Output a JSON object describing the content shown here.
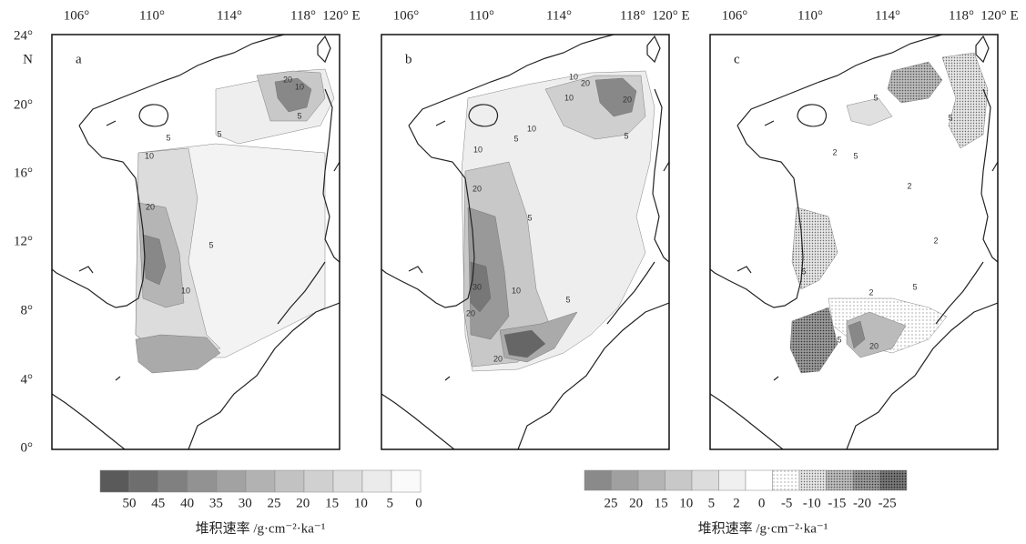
{
  "lat_labels": [
    "24°",
    "N",
    "20°",
    "16°",
    "12°",
    "8°",
    "4°",
    "0°"
  ],
  "panels": [
    {
      "label": "a",
      "lon_labels": [
        "106°",
        "110°",
        "114°",
        "118°",
        "120° E"
      ],
      "contour_labels": [
        "20",
        "10",
        "5",
        "5",
        "5",
        "10",
        "20",
        "5",
        "10"
      ]
    },
    {
      "label": "b",
      "lon_labels": [
        "106°",
        "110°",
        "114°",
        "118°",
        "120° E"
      ],
      "contour_labels": [
        "10",
        "20",
        "10",
        "20",
        "5",
        "5",
        "10",
        "10",
        "20",
        "5",
        "30",
        "10",
        "5",
        "20",
        "20"
      ]
    },
    {
      "label": "c",
      "lon_labels": [
        "106°",
        "110°",
        "114°",
        "118°",
        "120° E"
      ],
      "contour_labels": [
        "5",
        "5",
        "2",
        "5",
        "2",
        "2",
        "2",
        "5",
        "20",
        "5",
        "5"
      ]
    }
  ],
  "legends": [
    {
      "labels": [
        "50",
        "45",
        "40",
        "35",
        "30",
        "25",
        "20",
        "15",
        "10",
        "5",
        "0"
      ],
      "title": "堆积速率 /g·cm⁻²·ka⁻¹"
    },
    {
      "labels": [
        "25",
        "20",
        "15",
        "10",
        "5",
        "2",
        "0",
        "-5",
        "-10",
        "-15",
        "-20",
        "-25"
      ],
      "title": "堆积速率 /g·cm⁻²·ka⁻¹"
    }
  ]
}
